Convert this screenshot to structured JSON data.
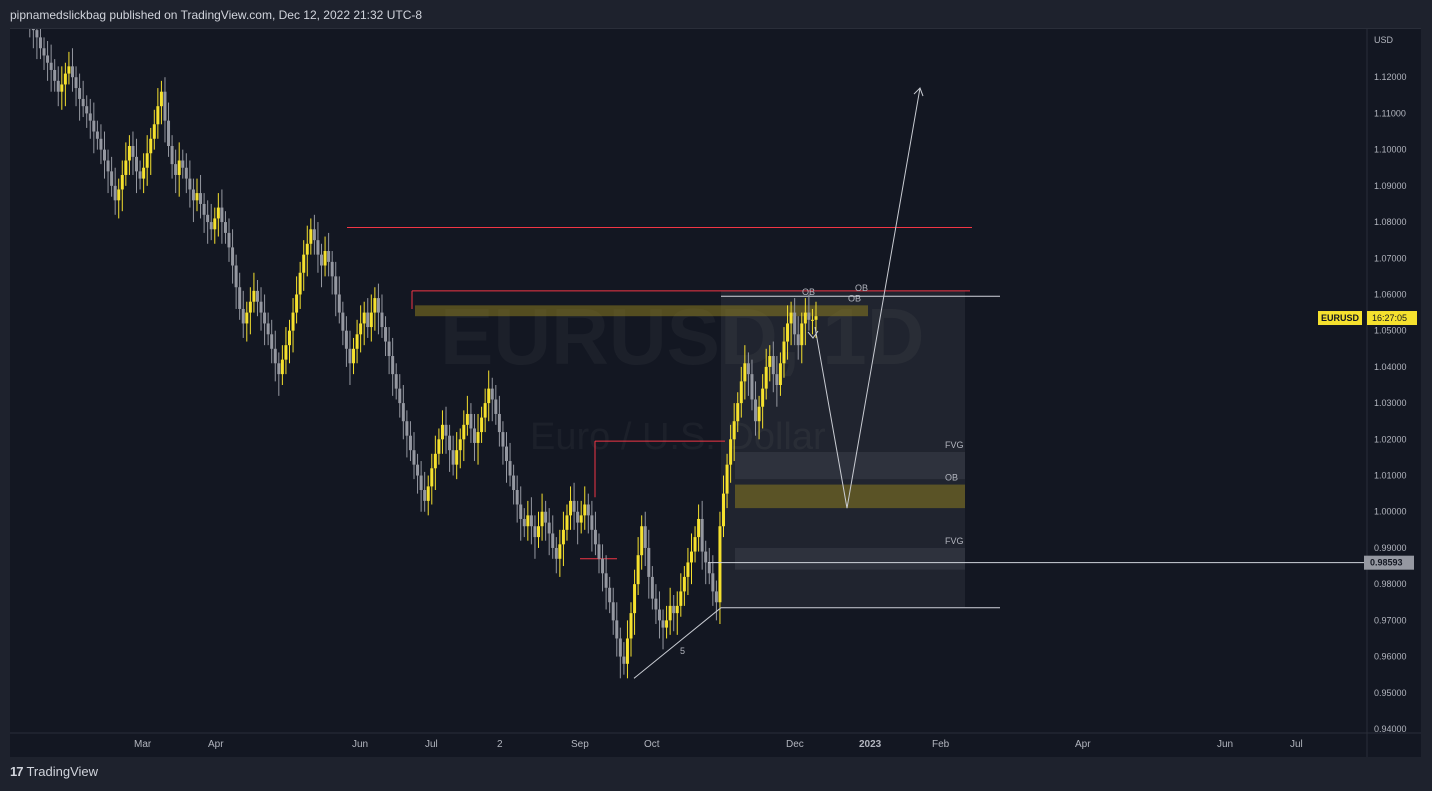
{
  "header": {
    "published_text": "pipnamedslickbag published on TradingView.com, Dec 12, 2022 21:32 UTC-8"
  },
  "footer": {
    "logo_glyph": "17",
    "brand": "TradingView"
  },
  "colors": {
    "background": "#131722",
    "bull_candle": "#f5e12e",
    "bear_candle": "#9598a1",
    "resistance_line": "#f23645",
    "ob_zone": "#8a7a1f",
    "fvg_zone": "#2a2e39",
    "projection_line": "#c9ccd3",
    "price_badge": "#f5e12e"
  },
  "chart_data": {
    "type": "candlestick",
    "symbol": "EURUSD",
    "watermark_symbol": "EURUSD, 1D",
    "watermark_name": "Euro / U.S. Dollar",
    "currency_label": "USD",
    "last_price_badge": {
      "symbol": "EURUSD",
      "countdown": "16:27:05",
      "price": 1.0535
    },
    "crosshair_price": "0.98593",
    "ylim": [
      0.94,
      1.13
    ],
    "y_ticks": [
      "0.94000",
      "0.95000",
      "0.96000",
      "0.97000",
      "0.98000",
      "0.99000",
      "1.00000",
      "1.01000",
      "1.02000",
      "1.03000",
      "1.04000",
      "1.05000",
      "1.06000",
      "1.07000",
      "1.08000",
      "1.09000",
      "1.10000",
      "1.11000",
      "1.12000"
    ],
    "x_ticks": [
      "Mar",
      "Apr",
      "Jun",
      "Jul",
      "2",
      "Sep",
      "Oct",
      "Dec",
      "2023",
      "Feb",
      "Apr",
      "Jun",
      "Jul"
    ],
    "bold_x_tick": "2023",
    "closes": [
      1.148,
      1.146,
      1.143,
      1.14,
      1.138,
      1.135,
      1.133,
      1.131,
      1.128,
      1.126,
      1.124,
      1.122,
      1.119,
      1.116,
      1.118,
      1.121,
      1.123,
      1.12,
      1.117,
      1.114,
      1.112,
      1.11,
      1.108,
      1.105,
      1.103,
      1.1,
      1.097,
      1.094,
      1.09,
      1.086,
      1.089,
      1.093,
      1.097,
      1.101,
      1.098,
      1.094,
      1.092,
      1.095,
      1.099,
      1.103,
      1.107,
      1.112,
      1.116,
      1.108,
      1.101,
      1.096,
      1.093,
      1.097,
      1.095,
      1.092,
      1.089,
      1.086,
      1.088,
      1.085,
      1.082,
      1.08,
      1.078,
      1.081,
      1.084,
      1.08,
      1.077,
      1.073,
      1.068,
      1.062,
      1.056,
      1.052,
      1.055,
      1.058,
      1.061,
      1.058,
      1.055,
      1.052,
      1.049,
      1.045,
      1.041,
      1.038,
      1.042,
      1.046,
      1.05,
      1.055,
      1.06,
      1.066,
      1.071,
      1.074,
      1.078,
      1.075,
      1.071,
      1.068,
      1.072,
      1.069,
      1.065,
      1.06,
      1.055,
      1.05,
      1.045,
      1.041,
      1.045,
      1.049,
      1.052,
      1.055,
      1.051,
      1.055,
      1.059,
      1.055,
      1.051,
      1.047,
      1.043,
      1.038,
      1.034,
      1.03,
      1.025,
      1.021,
      1.017,
      1.013,
      1.01,
      1.006,
      1.003,
      1.007,
      1.012,
      1.016,
      1.02,
      1.024,
      1.021,
      1.017,
      1.013,
      1.017,
      1.02,
      1.024,
      1.027,
      1.023,
      1.019,
      1.022,
      1.026,
      1.03,
      1.034,
      1.031,
      1.027,
      1.022,
      1.018,
      1.014,
      1.01,
      1.006,
      1.002,
      0.998,
      0.996,
      0.999,
      0.996,
      0.993,
      0.996,
      1.0,
      0.997,
      0.994,
      0.99,
      0.987,
      0.991,
      0.995,
      0.999,
      1.003,
      1.0,
      0.997,
      0.999,
      1.002,
      0.999,
      0.995,
      0.991,
      0.987,
      0.983,
      0.979,
      0.975,
      0.97,
      0.965,
      0.96,
      0.958,
      0.965,
      0.972,
      0.98,
      0.988,
      0.996,
      0.99,
      0.982,
      0.976,
      0.973,
      0.97,
      0.968,
      0.97,
      0.974,
      0.972,
      0.974,
      0.978,
      0.982,
      0.986,
      0.989,
      0.993,
      0.998,
      0.989,
      0.986,
      0.983,
      0.978,
      0.975,
      0.996,
      1.005,
      1.013,
      1.02,
      1.025,
      1.03,
      1.036,
      1.041,
      1.038,
      1.031,
      1.025,
      1.029,
      1.034,
      1.04,
      1.043,
      1.038,
      1.035,
      1.041,
      1.047,
      1.052,
      1.055,
      1.049,
      1.046,
      1.052,
      1.055,
      1.053,
      1.053,
      1.054
    ],
    "levels": [
      {
        "label": "",
        "price": 1.0785,
        "kind": "resistance"
      },
      {
        "label": "",
        "price": 1.061,
        "kind": "resistance"
      },
      {
        "label": "",
        "price": 1.0595,
        "kind": "horizontal"
      },
      {
        "label": "",
        "price": 1.0195,
        "kind": "resistance"
      },
      {
        "label": "",
        "price": 0.987,
        "kind": "resistance"
      },
      {
        "label": "",
        "price": 0.9735,
        "kind": "horizontal"
      }
    ],
    "zones": [
      {
        "label": "OB",
        "top": 1.057,
        "bottom": 1.054,
        "kind": "ob"
      },
      {
        "label": "FVG",
        "top": 1.0165,
        "bottom": 1.009,
        "kind": "fvg"
      },
      {
        "label": "OB",
        "top": 1.0075,
        "bottom": 1.001,
        "kind": "ob"
      },
      {
        "label": "FVG",
        "top": 0.99,
        "bottom": 0.984,
        "kind": "fvg"
      }
    ],
    "top_labels": [
      "OB",
      "OB"
    ],
    "wave_label": "5",
    "projection_points": [
      [
        1.051,
        1.001,
        1.117
      ]
    ]
  }
}
